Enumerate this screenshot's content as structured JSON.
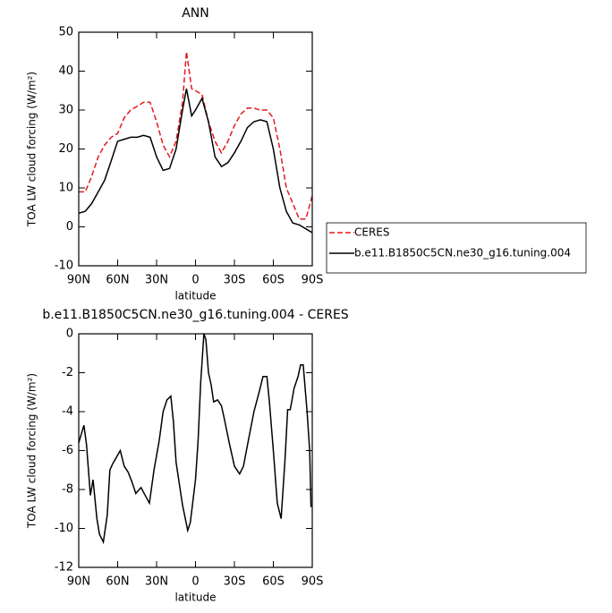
{
  "chart_data": [
    {
      "type": "line",
      "title": "ANN",
      "xlabel": "latitude",
      "ylabel": "TOA LW cloud forcing (W/m²)",
      "x": [
        90,
        85,
        80,
        75,
        70,
        65,
        60,
        55,
        50,
        45,
        40,
        35,
        30,
        25,
        20,
        15,
        10,
        7,
        3,
        0,
        -5,
        -10,
        -15,
        -20,
        -25,
        -30,
        -35,
        -40,
        -45,
        -50,
        -55,
        -60,
        -65,
        -70,
        -75,
        -80,
        -85,
        -90
      ],
      "series": [
        {
          "name": "CERES",
          "color": "#e41a1c",
          "line_style": "dashed",
          "values": [
            9,
            9,
            13,
            18,
            21,
            23,
            24,
            28,
            30,
            31,
            32,
            32,
            27,
            21,
            18,
            22,
            32,
            45,
            35.5,
            35,
            34,
            27,
            22,
            19,
            22,
            26,
            29,
            30.5,
            30.5,
            30,
            30,
            28,
            20,
            10,
            6,
            2,
            2,
            8
          ]
        },
        {
          "name": "b.e11.B1850C5CN.ne30_g16.tuning.004",
          "color": "#000000",
          "line_style": "solid",
          "values": [
            3.5,
            4,
            6,
            9,
            12,
            17,
            22,
            22.5,
            23,
            23,
            23.5,
            23,
            18,
            14.5,
            15,
            20,
            30,
            35.5,
            28.5,
            30,
            33,
            27,
            18,
            15.5,
            16.5,
            19,
            22,
            25.5,
            27,
            27.5,
            27,
            20,
            10,
            4,
            1,
            0.5,
            -0.5,
            -1.5
          ]
        }
      ],
      "xlim": [
        90,
        -90
      ],
      "xticks": [
        {
          "value": 90,
          "label": "90N"
        },
        {
          "value": 60,
          "label": "60N"
        },
        {
          "value": 30,
          "label": "30N"
        },
        0,
        {
          "value": -30,
          "label": "30S"
        },
        {
          "value": -60,
          "label": "60S"
        },
        {
          "value": -90,
          "label": "90S"
        }
      ],
      "ylim": [
        -10,
        50
      ],
      "yticks": [
        -10,
        0,
        10,
        20,
        30,
        40,
        50
      ],
      "grid": false,
      "legend": "right"
    },
    {
      "type": "line",
      "title": "b.e11.B1850C5CN.ne30_g16.tuning.004 - CERES",
      "xlabel": "latitude",
      "ylabel": "TOA LW cloud forcing (W/m²)",
      "x": [
        90,
        86,
        84,
        81,
        79,
        76,
        74,
        71,
        68,
        66,
        64,
        58,
        55,
        52,
        49,
        46,
        42,
        38,
        35.5,
        32,
        28,
        25,
        22,
        19,
        17,
        15,
        10,
        6,
        4,
        0,
        -2,
        -4,
        -6.5,
        -8,
        -10,
        -12,
        -14,
        -17,
        -20,
        -22,
        -26,
        -30,
        -34,
        -37,
        -41,
        -45,
        -49,
        -52,
        -55,
        -57,
        -60,
        -63,
        -66,
        -69,
        -71,
        -73,
        -76,
        -79,
        -81,
        -83,
        -86,
        -88,
        -89
      ],
      "color": "#000000",
      "values": [
        -5.6,
        -4.7,
        -5.7,
        -8.3,
        -7.5,
        -9.5,
        -10.3,
        -10.7,
        -9.3,
        -7.0,
        -6.7,
        -6.0,
        -6.8,
        -7.1,
        -7.6,
        -8.2,
        -7.9,
        -8.4,
        -8.7,
        -7.0,
        -5.5,
        -4.0,
        -3.4,
        -3.2,
        -4.5,
        -6.6,
        -8.8,
        -10.1,
        -9.7,
        -7.5,
        -5.5,
        -2.5,
        0,
        -0.3,
        -2.0,
        -2.6,
        -3.5,
        -3.4,
        -3.7,
        -4.3,
        -5.6,
        -6.8,
        -7.2,
        -6.8,
        -5.4,
        -4.0,
        -3.0,
        -2.2,
        -2.2,
        -3.5,
        -6.0,
        -8.7,
        -9.5,
        -6.5,
        -3.9,
        -3.9,
        -2.8,
        -2.2,
        -1.6,
        -1.6,
        -4.0,
        -6.0,
        -8.9
      ],
      "xlim": [
        90,
        -90
      ],
      "xticks": [
        {
          "value": 90,
          "label": "90N"
        },
        {
          "value": 60,
          "label": "60N"
        },
        {
          "value": 30,
          "label": "30N"
        },
        0,
        {
          "value": -30,
          "label": "30S"
        },
        {
          "value": -60,
          "label": "60S"
        },
        {
          "value": -90,
          "label": "90S"
        }
      ],
      "ylim": [
        -12,
        0
      ],
      "yticks": [
        -12,
        -10,
        -8,
        -6,
        -4,
        -2,
        0
      ],
      "grid": false
    }
  ]
}
